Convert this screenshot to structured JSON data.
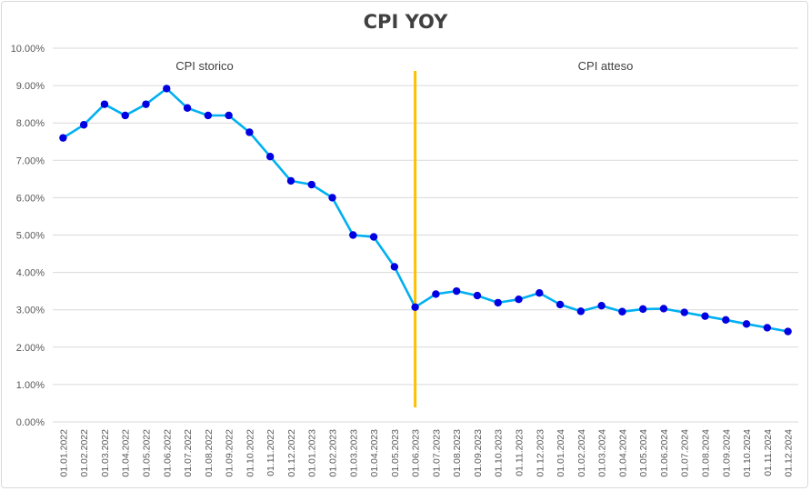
{
  "chart_data": {
    "type": "line",
    "title": "CPI YOY",
    "xlabel": "",
    "ylabel": "",
    "ylim": [
      0,
      10
    ],
    "y_tick_labels": [
      "0.00%",
      "1.00%",
      "2.00%",
      "3.00%",
      "4.00%",
      "5.00%",
      "6.00%",
      "7.00%",
      "8.00%",
      "9.00%",
      "10.00%"
    ],
    "grid": true,
    "legend": "none",
    "categories": [
      "01.01.2022",
      "01.02.2022",
      "01.03.2022",
      "01.04.2022",
      "01.05.2022",
      "01.06.2022",
      "01.07.2022",
      "01.08.2022",
      "01.09.2022",
      "01.10.2022",
      "01.11.2022",
      "01.12.2022",
      "01.01.2023",
      "01.02.2023",
      "01.03.2023",
      "01.04.2023",
      "01.05.2023",
      "01.06.2023",
      "01.07.2023",
      "01.08.2023",
      "01.09.2023",
      "01.10.2023",
      "01.11.2023",
      "01.12.2023",
      "01.01.2024",
      "01.02.2024",
      "01.03.2024",
      "01.04.2024",
      "01.05.2024",
      "01.06.2024",
      "01.07.2024",
      "01.08.2024",
      "01.09.2024",
      "01.10.2024",
      "01.11.2024",
      "01.12.2024"
    ],
    "series": [
      {
        "values": [
          7.6,
          7.95,
          8.5,
          8.2,
          8.5,
          8.92,
          8.4,
          8.2,
          8.2,
          7.75,
          7.1,
          6.45,
          6.35,
          6.0,
          5.0,
          4.95,
          4.15,
          3.07,
          3.42,
          3.5,
          3.38,
          3.19,
          3.28,
          3.45,
          3.14,
          2.96,
          3.11,
          2.95,
          3.02,
          3.03,
          2.93,
          2.83,
          2.73,
          2.62,
          2.52,
          2.42
        ],
        "line_color": "#00B0F0",
        "marker_color": "#0000E0"
      }
    ],
    "divider": {
      "at_category": "01.06.2023",
      "color": "#FFC000"
    },
    "annotations": [
      "CPI storico",
      "CPI atteso"
    ]
  }
}
